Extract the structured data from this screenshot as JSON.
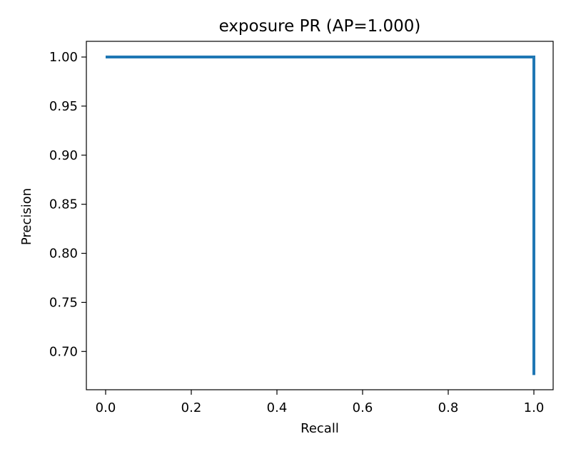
{
  "chart_data": {
    "type": "line",
    "title": "exposure PR (AP=1.000)",
    "xlabel": "Recall",
    "ylabel": "Precision",
    "xlim": [
      -0.045,
      1.045
    ],
    "ylim": [
      0.661,
      1.016
    ],
    "xticks": [
      0.0,
      0.2,
      0.4,
      0.6,
      0.8,
      1.0
    ],
    "xtick_labels": [
      "0.0",
      "0.2",
      "0.4",
      "0.6",
      "0.8",
      "1.0"
    ],
    "yticks": [
      0.7,
      0.75,
      0.8,
      0.85,
      0.9,
      0.95,
      1.0
    ],
    "ytick_labels": [
      "0.70",
      "0.75",
      "0.80",
      "0.85",
      "0.90",
      "0.95",
      "1.00"
    ],
    "grid": false,
    "series": [
      {
        "color": "#1f77b4",
        "x": [
          0.0,
          1.0,
          1.0
        ],
        "y": [
          1.0,
          1.0,
          0.676
        ]
      }
    ]
  }
}
